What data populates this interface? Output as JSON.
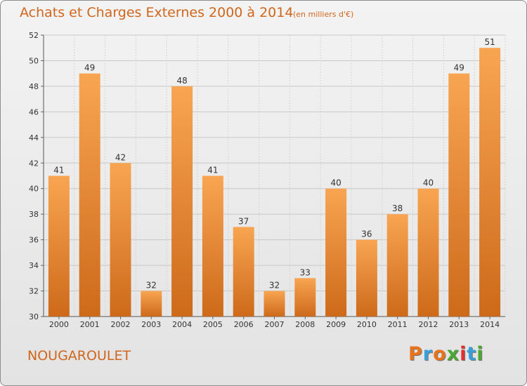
{
  "header": {
    "title": "Achats et Charges Externes 2000 à 2014",
    "subtitle": "(en milliers d'€)"
  },
  "footer": {
    "commune": "NOUGAROULET",
    "logo_letters": [
      "P",
      "r",
      "o",
      "x",
      "i",
      "t",
      "i"
    ]
  },
  "colors": {
    "text_accent": "#d0661c",
    "bar_light": "#f8a552",
    "bar_dark": "#cd6a1a",
    "logo": [
      "#e8731a",
      "#3a9fd6",
      "#e8731a",
      "#4aa832",
      "#e03030",
      "#3a9fd6",
      "#4aa832"
    ]
  },
  "chart_data": {
    "type": "bar",
    "categories": [
      "2000",
      "2001",
      "2002",
      "2003",
      "2004",
      "2005",
      "2006",
      "2007",
      "2008",
      "2009",
      "2010",
      "2011",
      "2012",
      "2013",
      "2014"
    ],
    "values": [
      41,
      49,
      42,
      32,
      48,
      41,
      37,
      32,
      33,
      40,
      36,
      38,
      40,
      49,
      51
    ],
    "data_labels": [
      "41",
      "49",
      "42",
      "32",
      "48",
      "41",
      "37",
      "32",
      "33",
      "40",
      "36",
      "38",
      "40",
      "49",
      "51"
    ],
    "title": "Achats et Charges Externes 2000 à 2014",
    "xlabel": "",
    "ylabel": "",
    "ylim": [
      30,
      52
    ],
    "yticks": [
      "30",
      "32",
      "34",
      "36",
      "38",
      "40",
      "42",
      "44",
      "46",
      "48",
      "50",
      "52"
    ],
    "grid": true,
    "legend": "none"
  }
}
